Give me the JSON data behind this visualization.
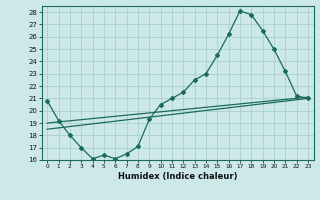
{
  "xlabel": "Humidex (Indice chaleur)",
  "bg_color": "#cce8e8",
  "grid_color": "#aacfcf",
  "line_color": "#1a6b5a",
  "spine_color": "#1a6b5a",
  "xlim": [
    -0.5,
    23.5
  ],
  "ylim": [
    16,
    28.5
  ],
  "yticks": [
    16,
    17,
    18,
    19,
    20,
    21,
    22,
    23,
    24,
    25,
    26,
    27,
    28
  ],
  "xticks": [
    0,
    1,
    2,
    3,
    4,
    5,
    6,
    7,
    8,
    9,
    10,
    11,
    12,
    13,
    14,
    15,
    16,
    17,
    18,
    19,
    20,
    21,
    22,
    23
  ],
  "line1_x": [
    0,
    1,
    2,
    3,
    4,
    5,
    6,
    7,
    8,
    9,
    10,
    11,
    12,
    13,
    14,
    15,
    16,
    17,
    18,
    19,
    20,
    21,
    22,
    23
  ],
  "line1_y": [
    20.8,
    19.2,
    18.0,
    17.0,
    16.1,
    16.4,
    16.1,
    16.5,
    17.1,
    19.3,
    20.5,
    21.0,
    21.5,
    22.5,
    23.0,
    24.5,
    26.2,
    28.1,
    27.8,
    26.5,
    25.0,
    23.2,
    21.2,
    21.0
  ],
  "line2_x": [
    0,
    23
  ],
  "line2_y": [
    19.0,
    21.1
  ],
  "line3_x": [
    0,
    23
  ],
  "line3_y": [
    18.5,
    21.0
  ]
}
